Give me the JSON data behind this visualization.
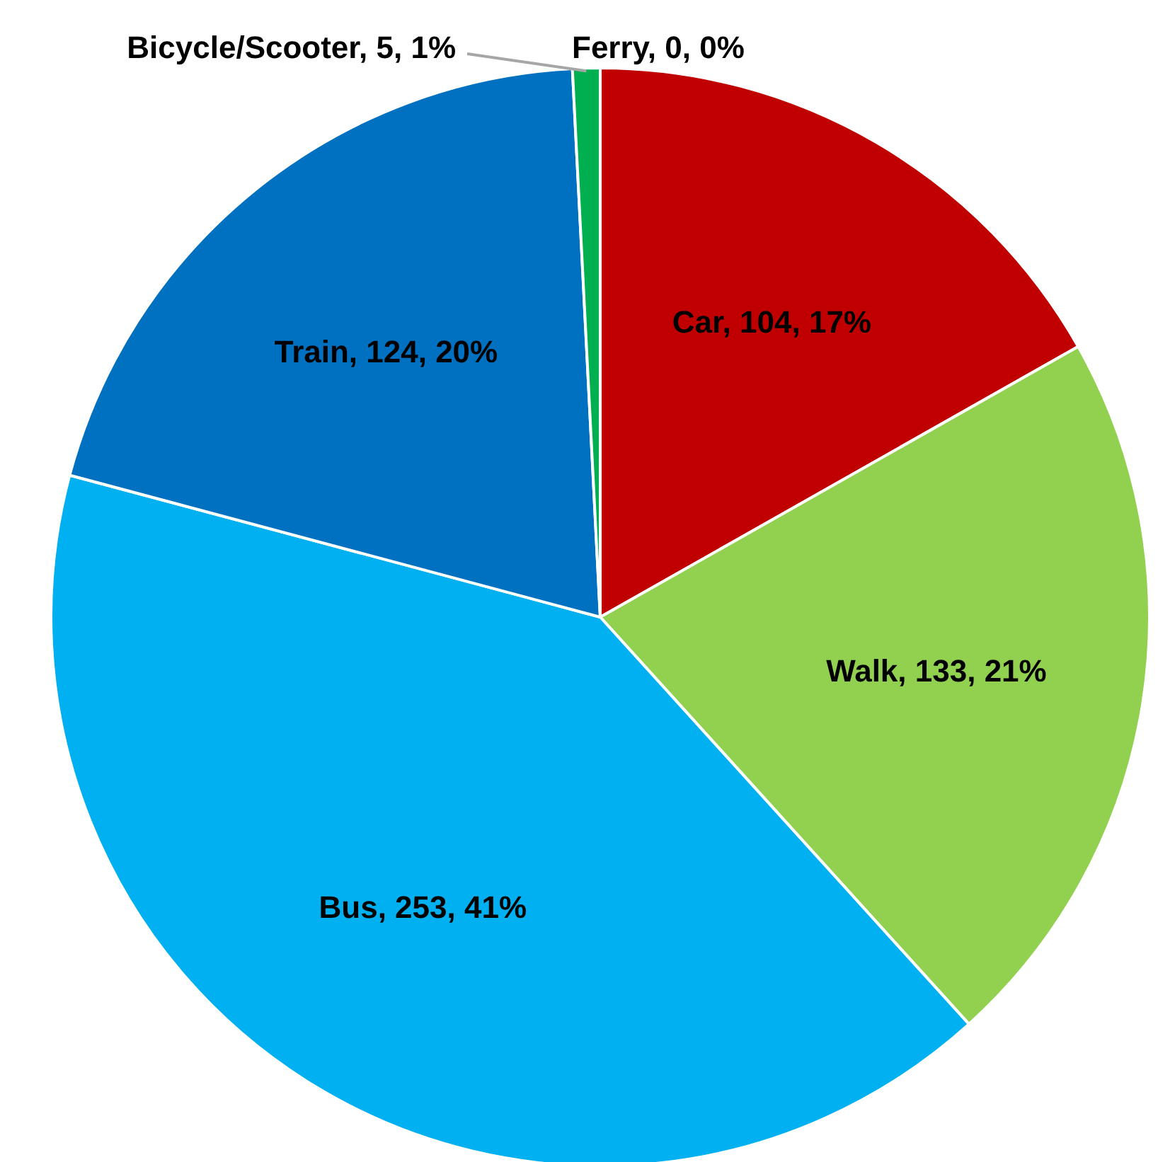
{
  "chart_data": {
    "type": "pie",
    "categories": [
      "Ferry",
      "Car",
      "Walk",
      "Bus",
      "Train",
      "Bicycle/Scooter"
    ],
    "values": [
      0,
      104,
      133,
      253,
      124,
      5
    ],
    "colors": [
      "#00b050",
      "#c00000",
      "#92d050",
      "#00b0f0",
      "#0070c0",
      "#00b050"
    ],
    "value_labels": [
      ", 0, 0%",
      ", 104, 17%",
      ", 133, 21%",
      ", 253, 41%",
      ", 124, 20%",
      ", 5, 1%"
    ]
  }
}
